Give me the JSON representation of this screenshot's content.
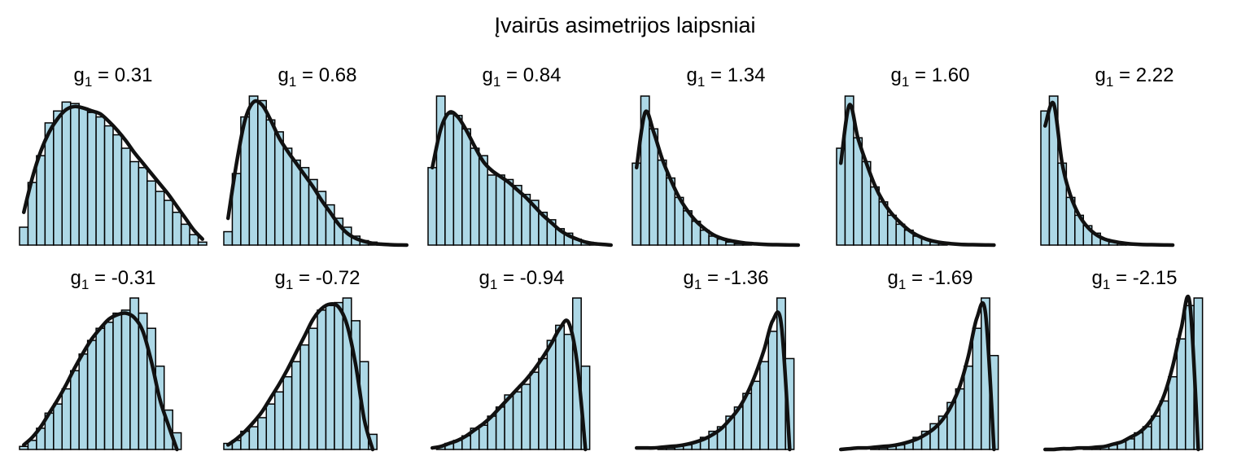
{
  "figure": {
    "title": "Įvairūs asimetrijos laipsniai",
    "bar_color": "#add8e6",
    "edge_color": "#000000",
    "curve_color": "#111111"
  },
  "chart_data": [
    {
      "type": "bar",
      "title_var": "g",
      "title_sub": "1",
      "title_value": "= 0.31",
      "values": [
        0.12,
        0.42,
        0.6,
        0.82,
        0.9,
        0.96,
        0.95,
        0.92,
        0.89,
        0.86,
        0.8,
        0.74,
        0.65,
        0.56,
        0.52,
        0.43,
        0.36,
        0.3,
        0.22,
        0.14,
        0.07,
        0.02
      ],
      "curve": [
        0.22,
        0.45,
        0.63,
        0.76,
        0.85,
        0.91,
        0.93,
        0.92,
        0.9,
        0.88,
        0.83,
        0.77,
        0.7,
        0.62,
        0.55,
        0.48,
        0.41,
        0.34,
        0.26,
        0.18,
        0.1,
        0.04
      ]
    },
    {
      "type": "bar",
      "title_var": "g",
      "title_sub": "1",
      "title_value": "= 0.68",
      "values": [
        0.09,
        0.48,
        0.86,
        1.0,
        0.97,
        0.84,
        0.76,
        0.65,
        0.57,
        0.52,
        0.44,
        0.36,
        0.27,
        0.18,
        0.12,
        0.06,
        0.03,
        0.02,
        0.01,
        0.0,
        0.0,
        0.0
      ],
      "curve": [
        0.18,
        0.55,
        0.84,
        0.96,
        0.94,
        0.84,
        0.72,
        0.63,
        0.55,
        0.47,
        0.39,
        0.3,
        0.22,
        0.14,
        0.08,
        0.045,
        0.025,
        0.012,
        0.006,
        0.003,
        0.001,
        0.0
      ]
    },
    {
      "type": "bar",
      "title_var": "g",
      "title_sub": "1",
      "title_value": "= 0.84",
      "values": [
        0.52,
        1.0,
        0.88,
        0.87,
        0.78,
        0.65,
        0.6,
        0.47,
        0.47,
        0.44,
        0.4,
        0.34,
        0.3,
        0.22,
        0.17,
        0.11,
        0.08,
        0.04,
        0.02,
        0.01,
        0.0,
        0.0
      ],
      "curve": [
        0.52,
        0.78,
        0.89,
        0.86,
        0.77,
        0.66,
        0.56,
        0.5,
        0.46,
        0.42,
        0.37,
        0.32,
        0.26,
        0.2,
        0.15,
        0.1,
        0.065,
        0.04,
        0.02,
        0.01,
        0.005,
        0.0
      ]
    },
    {
      "type": "bar",
      "title_var": "g",
      "title_sub": "1",
      "title_value": "= 1.34",
      "values": [
        0.55,
        1.0,
        0.78,
        0.57,
        0.45,
        0.32,
        0.23,
        0.16,
        0.1,
        0.06,
        0.04,
        0.02,
        0.01,
        0.01,
        0.0,
        0.0,
        0.0,
        0.0,
        0.0,
        0.0,
        0.0,
        0.0
      ],
      "curve": [
        0.52,
        0.89,
        0.76,
        0.58,
        0.44,
        0.32,
        0.23,
        0.16,
        0.11,
        0.07,
        0.045,
        0.03,
        0.02,
        0.012,
        0.008,
        0.005,
        0.003,
        0.002,
        0.001,
        0.0,
        0.0,
        0.0
      ]
    },
    {
      "type": "bar",
      "title_var": "g",
      "title_sub": "1",
      "title_value": "= 1.60",
      "values": [
        0.65,
        1.0,
        0.72,
        0.56,
        0.39,
        0.29,
        0.2,
        0.14,
        0.1,
        0.06,
        0.04,
        0.02,
        0.01,
        0.0,
        0.0,
        0.0,
        0.0,
        0.0,
        0.0,
        0.0,
        0.0,
        0.0
      ],
      "curve": [
        0.55,
        0.94,
        0.72,
        0.55,
        0.4,
        0.29,
        0.21,
        0.15,
        0.1,
        0.065,
        0.04,
        0.025,
        0.015,
        0.009,
        0.005,
        0.003,
        0.002,
        0.001,
        0.0,
        0.0,
        0.0,
        0.0
      ]
    },
    {
      "type": "bar",
      "title_var": "g",
      "title_sub": "1",
      "title_value": "= 2.22",
      "values": [
        0.9,
        1.0,
        0.55,
        0.32,
        0.2,
        0.13,
        0.08,
        0.04,
        0.02,
        0.01,
        0.01,
        0.0,
        0.0,
        0.0,
        0.0,
        0.0,
        0.0,
        0.0,
        0.0,
        0.0,
        0.0,
        0.0
      ],
      "curve": [
        0.8,
        0.95,
        0.55,
        0.33,
        0.2,
        0.12,
        0.07,
        0.04,
        0.025,
        0.015,
        0.008,
        0.005,
        0.003,
        0.002,
        0.001,
        0.0,
        0.0,
        0.0,
        0.0,
        0.0,
        0.0,
        0.0
      ]
    },
    {
      "type": "bar",
      "title_var": "g",
      "title_sub": "1",
      "title_value": "= -0.31",
      "values": [
        0.02,
        0.06,
        0.14,
        0.24,
        0.3,
        0.4,
        0.52,
        0.63,
        0.72,
        0.8,
        0.84,
        0.9,
        0.92,
        1.0,
        0.9,
        0.8,
        0.55,
        0.26,
        0.11,
        0.0,
        0.0,
        0.0
      ],
      "curve": [
        0.03,
        0.08,
        0.15,
        0.24,
        0.33,
        0.43,
        0.54,
        0.64,
        0.73,
        0.8,
        0.86,
        0.89,
        0.9,
        0.87,
        0.78,
        0.58,
        0.33,
        0.16,
        0.0,
        0.0,
        0.0,
        0.0
      ]
    },
    {
      "type": "bar",
      "title_var": "g",
      "title_sub": "1",
      "title_value": "= -0.72",
      "values": [
        0.04,
        0.06,
        0.12,
        0.15,
        0.21,
        0.3,
        0.38,
        0.48,
        0.58,
        0.69,
        0.8,
        0.92,
        0.95,
        0.97,
        1.0,
        0.85,
        0.58,
        0.1,
        0.0,
        0.0,
        0.0,
        0.0
      ],
      "curve": [
        0.03,
        0.07,
        0.12,
        0.18,
        0.25,
        0.34,
        0.43,
        0.53,
        0.64,
        0.75,
        0.86,
        0.93,
        0.96,
        0.94,
        0.82,
        0.56,
        0.2,
        0.0,
        0.0,
        0.0,
        0.0,
        0.0
      ]
    },
    {
      "type": "bar",
      "title_var": "g",
      "title_sub": "1",
      "title_value": "= -0.94",
      "values": [
        0.0,
        0.02,
        0.04,
        0.06,
        0.09,
        0.14,
        0.16,
        0.22,
        0.28,
        0.36,
        0.38,
        0.43,
        0.51,
        0.6,
        0.72,
        0.82,
        0.76,
        1.0,
        0.55,
        0.0,
        0.0,
        0.0
      ],
      "curve": [
        0.01,
        0.02,
        0.04,
        0.06,
        0.09,
        0.13,
        0.17,
        0.22,
        0.28,
        0.34,
        0.4,
        0.46,
        0.53,
        0.61,
        0.7,
        0.8,
        0.84,
        0.58,
        0.0,
        0.0,
        0.0,
        0.0
      ]
    },
    {
      "type": "bar",
      "title_var": "g",
      "title_sub": "1",
      "title_value": "= -1.36",
      "values": [
        0.0,
        0.0,
        0.0,
        0.01,
        0.01,
        0.02,
        0.03,
        0.05,
        0.08,
        0.12,
        0.15,
        0.22,
        0.28,
        0.37,
        0.45,
        0.58,
        0.78,
        1.0,
        0.6,
        0.0,
        0.0,
        0.0
      ],
      "curve": [
        0.01,
        0.01,
        0.01,
        0.015,
        0.02,
        0.025,
        0.035,
        0.05,
        0.07,
        0.1,
        0.14,
        0.2,
        0.27,
        0.37,
        0.5,
        0.66,
        0.85,
        0.83,
        0.0,
        0.0,
        0.0,
        0.0
      ]
    },
    {
      "type": "bar",
      "title_var": "g",
      "title_sub": "1",
      "title_value": "= -1.69",
      "values": [
        0.0,
        0.0,
        0.0,
        0.0,
        0.01,
        0.01,
        0.02,
        0.03,
        0.05,
        0.08,
        0.12,
        0.17,
        0.22,
        0.31,
        0.4,
        0.55,
        0.8,
        1.0,
        0.62,
        0.0,
        0.0,
        0.0
      ],
      "curve": [
        0.0,
        0.005,
        0.01,
        0.01,
        0.015,
        0.02,
        0.025,
        0.035,
        0.05,
        0.07,
        0.1,
        0.14,
        0.2,
        0.29,
        0.42,
        0.62,
        0.87,
        0.9,
        0.0,
        0.0,
        0.0,
        0.0
      ]
    },
    {
      "type": "bar",
      "title_var": "g",
      "title_sub": "1",
      "title_value": "= -2.15",
      "values": [
        0.0,
        0.0,
        0.0,
        0.0,
        0.0,
        0.01,
        0.01,
        0.02,
        0.03,
        0.05,
        0.07,
        0.11,
        0.15,
        0.22,
        0.32,
        0.48,
        0.73,
        0.95,
        1.0,
        0.0,
        0.0,
        0.0
      ],
      "curve": [
        0.0,
        0.0,
        0.005,
        0.005,
        0.01,
        0.01,
        0.015,
        0.02,
        0.035,
        0.05,
        0.08,
        0.11,
        0.16,
        0.24,
        0.36,
        0.55,
        0.8,
        0.97,
        0.0,
        0.0,
        0.0,
        0.0
      ]
    }
  ]
}
